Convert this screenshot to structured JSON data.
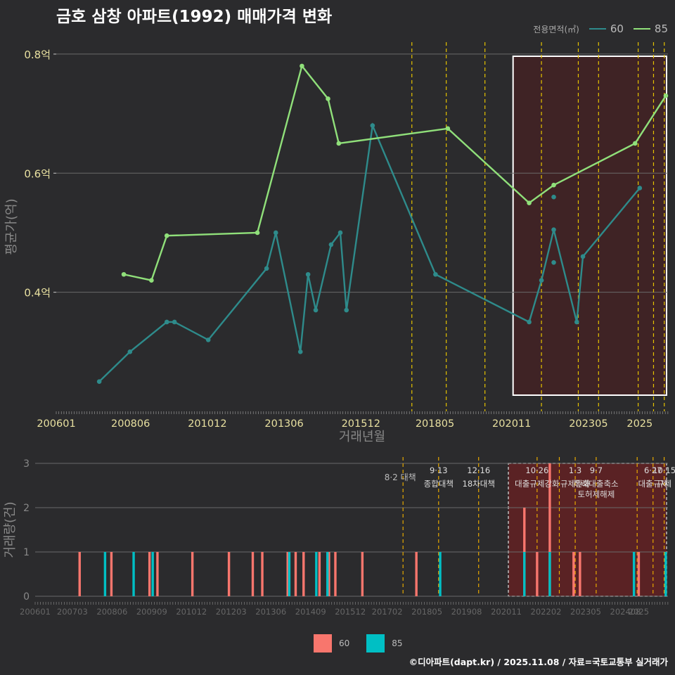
{
  "title": "금호 삼창 아파트(1992) 매매가격 변화",
  "footer": "©디아파트(dapt.kr) / 2025.11.08 / 자료=국토교통부 실거래가",
  "legend_top": {
    "title": "전용면적(㎡)",
    "items": [
      {
        "label": "60",
        "color": "#2e8b8b"
      },
      {
        "label": "85",
        "color": "#90e07a"
      }
    ]
  },
  "legend_bottom": {
    "items": [
      {
        "label": "60",
        "color": "#f8766d"
      },
      {
        "label": "85",
        "color": "#00bfc4"
      }
    ]
  },
  "chart_data": [
    {
      "type": "line",
      "title": "금호 삼창 아파트(1992) 매매가격 변화",
      "xlabel": "거래년월",
      "ylabel": "평균가(억)",
      "xlim": [
        2006.0,
        2025.92
      ],
      "ylim": [
        0.2,
        0.82
      ],
      "x_tick_labels": [
        "200601",
        "200806",
        "201012",
        "201306",
        "201512",
        "201805",
        "202011",
        "202305",
        "2025"
      ],
      "x_tick_values": [
        2006.0,
        2008.42,
        2010.92,
        2013.42,
        2015.92,
        2018.33,
        2020.83,
        2023.33,
        2025.0
      ],
      "y_tick_labels": [
        "0.4억",
        "0.6억",
        "0.8억"
      ],
      "y_tick_values": [
        0.4,
        0.6,
        0.8
      ],
      "highlight_range": [
        2020.83,
        2025.92
      ],
      "series": [
        {
          "name": "60",
          "color": "#2e8b8b",
          "points": [
            [
              2007.4,
              0.25
            ],
            [
              2008.4,
              0.3
            ],
            [
              2009.6,
              0.35
            ],
            [
              2009.85,
              0.35
            ],
            [
              2010.95,
              0.32
            ],
            [
              2012.85,
              0.44
            ],
            [
              2013.15,
              0.5
            ],
            [
              2013.95,
              0.3
            ],
            [
              2014.2,
              0.43
            ],
            [
              2014.45,
              0.37
            ],
            [
              2014.95,
              0.48
            ],
            [
              2015.25,
              0.5
            ],
            [
              2015.45,
              0.37
            ],
            [
              2016.3,
              0.68
            ],
            [
              2018.35,
              0.43
            ],
            [
              2021.4,
              0.35
            ],
            [
              2021.8,
              0.42
            ],
            [
              2022.2,
              0.505
            ],
            [
              2022.2,
              0.56
            ],
            [
              2022.2,
              0.45
            ],
            [
              2022.95,
              0.35
            ],
            [
              2023.15,
              0.46
            ],
            [
              2025.0,
              0.575
            ]
          ]
        },
        {
          "name": "85",
          "color": "#90e07a",
          "points": [
            [
              2008.2,
              0.43
            ],
            [
              2009.1,
              0.42
            ],
            [
              2009.6,
              0.495
            ],
            [
              2012.55,
              0.5
            ],
            [
              2014.0,
              0.78
            ],
            [
              2014.85,
              0.725
            ],
            [
              2015.2,
              0.65
            ],
            [
              2018.75,
              0.675
            ],
            [
              2021.4,
              0.55
            ],
            [
              2022.2,
              0.58
            ],
            [
              2024.85,
              0.65
            ],
            [
              2025.85,
              0.73
            ]
          ]
        }
      ],
      "policy_lines_x": [
        2017.58,
        2018.7,
        2019.96,
        2021.8,
        2023.0,
        2023.66,
        2024.95,
        2025.45,
        2025.8
      ]
    },
    {
      "type": "bar",
      "xlabel": "",
      "ylabel": "거래량(건)",
      "xlim": [
        2006.0,
        2025.92
      ],
      "ylim": [
        0,
        3
      ],
      "x_tick_labels": [
        "200601",
        "200703",
        "200806",
        "200909",
        "201012",
        "201203",
        "201306",
        "201409",
        "201512",
        "201702",
        "201805",
        "201908",
        "202011",
        "202202",
        "202305",
        "202408",
        "2025"
      ],
      "x_tick_values": [
        2006.0,
        2007.17,
        2008.42,
        2009.67,
        2010.92,
        2012.17,
        2013.42,
        2014.67,
        2015.92,
        2017.08,
        2018.33,
        2019.58,
        2020.83,
        2022.08,
        2023.33,
        2024.58,
        2025.0
      ],
      "y_tick_labels": [
        "0",
        "1",
        "2",
        "3"
      ],
      "y_tick_values": [
        0,
        1,
        2,
        3
      ],
      "highlight_range": [
        2020.83,
        2025.92
      ],
      "series": [
        {
          "name": "60",
          "color": "#f8766d",
          "bars": [
            [
              2007.4,
              1
            ],
            [
              2008.4,
              1
            ],
            [
              2009.6,
              1
            ],
            [
              2009.85,
              1
            ],
            [
              2010.95,
              1
            ],
            [
              2012.1,
              1
            ],
            [
              2012.85,
              1
            ],
            [
              2013.15,
              1
            ],
            [
              2013.95,
              1
            ],
            [
              2014.2,
              1
            ],
            [
              2014.45,
              1
            ],
            [
              2014.95,
              1
            ],
            [
              2015.25,
              1
            ],
            [
              2015.45,
              1
            ],
            [
              2016.3,
              1
            ],
            [
              2018.0,
              1
            ],
            [
              2021.4,
              2
            ],
            [
              2021.8,
              1
            ],
            [
              2022.2,
              3
            ],
            [
              2022.95,
              1
            ],
            [
              2023.15,
              1
            ],
            [
              2025.0,
              1
            ]
          ]
        },
        {
          "name": "85",
          "color": "#00bfc4",
          "bars": [
            [
              2008.2,
              1
            ],
            [
              2009.1,
              1
            ],
            [
              2009.7,
              1
            ],
            [
              2014.0,
              1
            ],
            [
              2014.85,
              1
            ],
            [
              2015.2,
              1
            ],
            [
              2018.75,
              1
            ],
            [
              2021.4,
              1
            ],
            [
              2022.2,
              1
            ],
            [
              2024.85,
              1
            ],
            [
              2025.85,
              1
            ]
          ]
        }
      ],
      "policy_lines_x": [
        2017.58,
        2018.7,
        2019.96,
        2021.8,
        2022.5,
        2023.0,
        2023.66,
        2024.95,
        2025.45,
        2025.8
      ],
      "annotations": [
        {
          "x": 2017.58,
          "date": "8·2",
          "label": "8·2 대책"
        },
        {
          "x": 2018.7,
          "date": "9·13",
          "label": "종합대책"
        },
        {
          "x": 2019.96,
          "date": "12·16",
          "label": "18차대책"
        },
        {
          "x": 2021.8,
          "date": "10·26",
          "label": "대출규제강화"
        },
        {
          "x": 2023.0,
          "date": "1·3",
          "label": "규제완화"
        },
        {
          "x": 2023.66,
          "date": "9·7",
          "label": "특례대출축소 토허제해제"
        },
        {
          "x": 2025.45,
          "date": "6·27",
          "label": "대출규제"
        },
        {
          "x": 2025.8,
          "date": "10·15",
          "label": "규제"
        }
      ]
    }
  ]
}
